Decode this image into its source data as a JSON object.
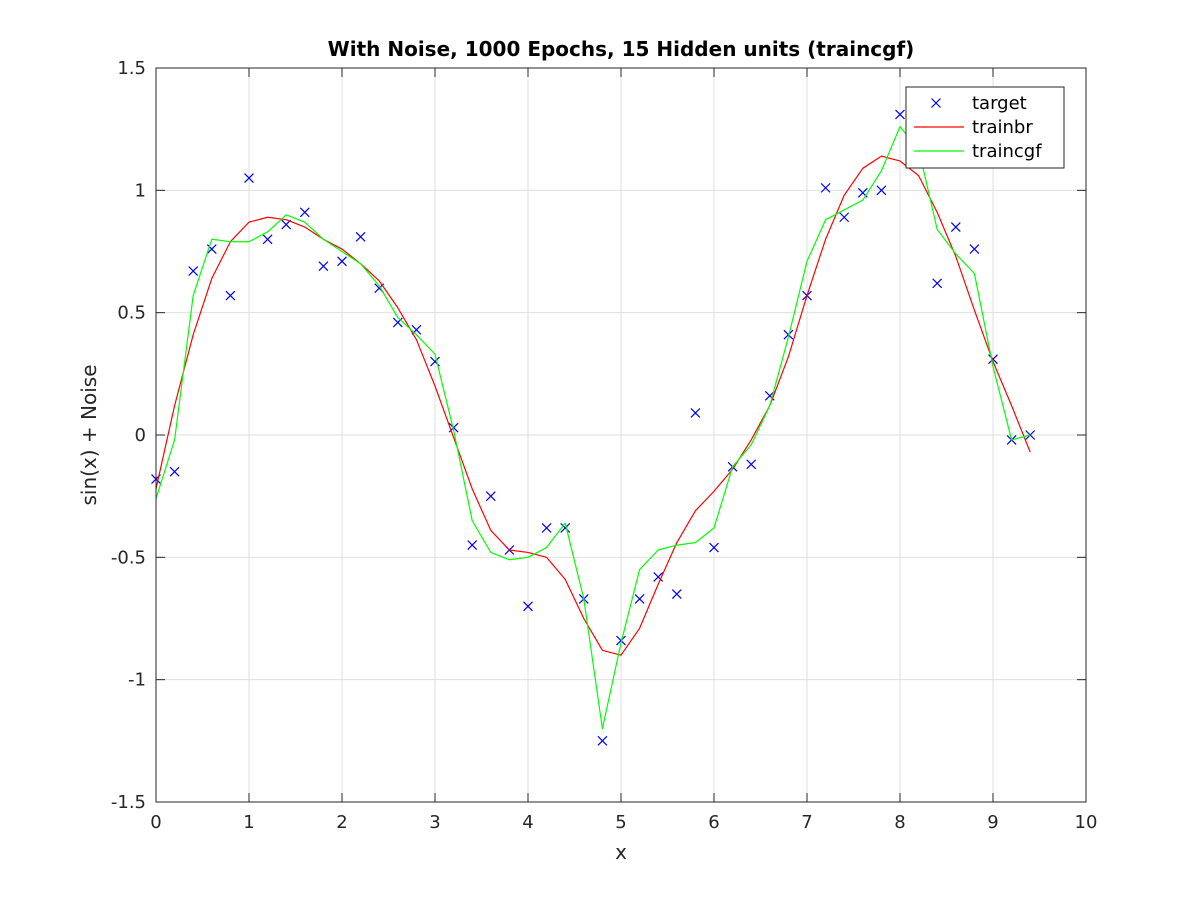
{
  "chart_data": {
    "type": "line",
    "title": "With Noise, 1000 Epochs, 15 Hidden units (traincgf)",
    "xlabel": "x",
    "ylabel": "sin(x) + Noise",
    "xlim": [
      0,
      10
    ],
    "ylim": [
      -1.5,
      1.5
    ],
    "xticks": [
      0,
      1,
      2,
      3,
      4,
      5,
      6,
      7,
      8,
      9,
      10
    ],
    "yticks": [
      -1.5,
      -1,
      -0.5,
      0,
      0.5,
      1,
      1.5
    ],
    "xtick_labels": [
      "0",
      "1",
      "2",
      "3",
      "4",
      "5",
      "6",
      "7",
      "8",
      "9",
      "10"
    ],
    "ytick_labels": [
      "-1.5",
      "-1",
      "-0.5",
      "0",
      "0.5",
      "1",
      "1.5"
    ],
    "grid": true,
    "legend_position": "top-right",
    "x": [
      0,
      0.2,
      0.4,
      0.6,
      0.8,
      1.0,
      1.2,
      1.4,
      1.6,
      1.8,
      2.0,
      2.2,
      2.4,
      2.6,
      2.8,
      3.0,
      3.2,
      3.4,
      3.6,
      3.8,
      4.0,
      4.2,
      4.4,
      4.6,
      4.8,
      5.0,
      5.2,
      5.4,
      5.6,
      5.8,
      6.0,
      6.2,
      6.4,
      6.6,
      6.8,
      7.0,
      7.2,
      7.4,
      7.6,
      7.8,
      8.0,
      8.2,
      8.4,
      8.6,
      8.8,
      9.0,
      9.2,
      9.4
    ],
    "series": [
      {
        "name": "target",
        "style": "marker-x",
        "color": "#0000ff",
        "values": [
          -0.18,
          -0.15,
          0.67,
          0.76,
          0.57,
          1.05,
          0.8,
          0.86,
          0.91,
          0.69,
          0.71,
          0.81,
          0.6,
          0.46,
          0.43,
          0.3,
          0.03,
          -0.45,
          -0.25,
          -0.47,
          -0.7,
          -0.38,
          -0.38,
          -0.67,
          -1.25,
          -0.84,
          -0.67,
          -0.58,
          -0.65,
          0.09,
          -0.46,
          -0.13,
          -0.12,
          0.16,
          0.41,
          0.57,
          1.01,
          0.89,
          0.99,
          1.0,
          1.31,
          1.13,
          0.62,
          0.85,
          0.76,
          0.31,
          -0.02,
          0.0
        ]
      },
      {
        "name": "trainbr",
        "style": "line",
        "color": "#ff0000",
        "values": [
          -0.22,
          0.12,
          0.41,
          0.64,
          0.79,
          0.87,
          0.89,
          0.88,
          0.85,
          0.8,
          0.76,
          0.7,
          0.63,
          0.52,
          0.39,
          0.2,
          -0.01,
          -0.22,
          -0.39,
          -0.47,
          -0.48,
          -0.5,
          -0.59,
          -0.75,
          -0.88,
          -0.9,
          -0.79,
          -0.61,
          -0.44,
          -0.31,
          -0.23,
          -0.14,
          -0.02,
          0.12,
          0.32,
          0.57,
          0.8,
          0.98,
          1.09,
          1.14,
          1.12,
          1.06,
          0.91,
          0.73,
          0.51,
          0.3,
          0.12,
          -0.07
        ]
      },
      {
        "name": "traincgf",
        "style": "line",
        "color": "#00ff00",
        "values": [
          -0.26,
          -0.02,
          0.57,
          0.8,
          0.79,
          0.79,
          0.83,
          0.9,
          0.87,
          0.8,
          0.75,
          0.7,
          0.61,
          0.48,
          0.41,
          0.33,
          0.02,
          -0.35,
          -0.48,
          -0.51,
          -0.5,
          -0.46,
          -0.36,
          -0.67,
          -1.2,
          -0.85,
          -0.55,
          -0.47,
          -0.45,
          -0.44,
          -0.38,
          -0.13,
          -0.04,
          0.12,
          0.4,
          0.71,
          0.88,
          0.92,
          0.96,
          1.08,
          1.26,
          1.17,
          0.84,
          0.74,
          0.66,
          0.28,
          -0.02,
          0.0
        ]
      }
    ]
  }
}
